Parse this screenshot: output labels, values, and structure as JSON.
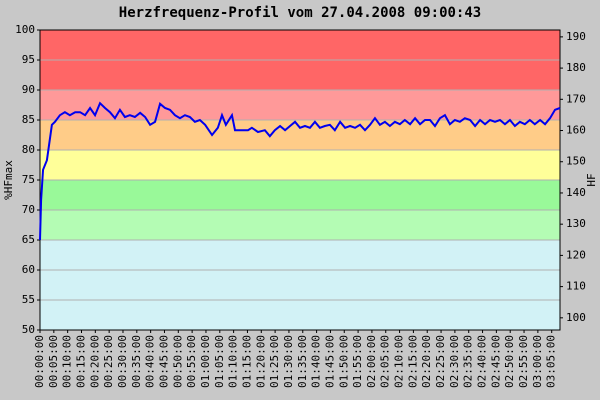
{
  "chart_data": {
    "type": "line",
    "title": "Herzfrequenz-Profil vom 27.04.2008 09:00:43",
    "ylabel": "%HFmax",
    "y2label": "HF",
    "xlim": [
      0,
      188
    ],
    "ylim": [
      50,
      100
    ],
    "y2lim": [
      96.1,
      192.2
    ],
    "yticks": [
      50,
      55,
      60,
      65,
      70,
      75,
      80,
      85,
      90,
      95,
      100
    ],
    "y2ticks": [
      100,
      110,
      120,
      130,
      140,
      150,
      160,
      170,
      180,
      190
    ],
    "xticks": [
      {
        "value": 0,
        "label": "00:00:00"
      },
      {
        "value": 5,
        "label": "00:05:00"
      },
      {
        "value": 10,
        "label": "00:10:00"
      },
      {
        "value": 15,
        "label": "00:15:00"
      },
      {
        "value": 20,
        "label": "00:20:00"
      },
      {
        "value": 25,
        "label": "00:25:00"
      },
      {
        "value": 30,
        "label": "00:30:00"
      },
      {
        "value": 35,
        "label": "00:35:00"
      },
      {
        "value": 40,
        "label": "00:40:00"
      },
      {
        "value": 45,
        "label": "00:45:00"
      },
      {
        "value": 50,
        "label": "00:50:00"
      },
      {
        "value": 55,
        "label": "00:55:00"
      },
      {
        "value": 60,
        "label": "01:00:00"
      },
      {
        "value": 65,
        "label": "01:05:00"
      },
      {
        "value": 70,
        "label": "01:10:00"
      },
      {
        "value": 75,
        "label": "01:15:00"
      },
      {
        "value": 80,
        "label": "01:20:00"
      },
      {
        "value": 85,
        "label": "01:25:00"
      },
      {
        "value": 90,
        "label": "01:30:00"
      },
      {
        "value": 95,
        "label": "01:35:00"
      },
      {
        "value": 100,
        "label": "01:40:00"
      },
      {
        "value": 105,
        "label": "01:45:00"
      },
      {
        "value": 110,
        "label": "01:50:00"
      },
      {
        "value": 115,
        "label": "01:55:00"
      },
      {
        "value": 120,
        "label": "02:00:00"
      },
      {
        "value": 125,
        "label": "02:05:00"
      },
      {
        "value": 130,
        "label": "02:10:00"
      },
      {
        "value": 135,
        "label": "02:15:00"
      },
      {
        "value": 140,
        "label": "02:20:00"
      },
      {
        "value": 145,
        "label": "02:25:00"
      },
      {
        "value": 150,
        "label": "02:30:00"
      },
      {
        "value": 155,
        "label": "02:35:00"
      },
      {
        "value": 160,
        "label": "02:40:00"
      },
      {
        "value": 165,
        "label": "02:45:00"
      },
      {
        "value": 170,
        "label": "02:50:00"
      },
      {
        "value": 175,
        "label": "02:55:00"
      },
      {
        "value": 180,
        "label": "03:00:00"
      },
      {
        "value": 185,
        "label": "03:05:00"
      }
    ],
    "grid": true,
    "zones": [
      {
        "from": 50,
        "to": 65,
        "color": "#d2f2f6"
      },
      {
        "from": 65,
        "to": 70,
        "color": "#b4fcb4"
      },
      {
        "from": 70,
        "to": 75,
        "color": "#99f999"
      },
      {
        "from": 75,
        "to": 80,
        "color": "#ffff99"
      },
      {
        "from": 80,
        "to": 85,
        "color": "#ffcc88"
      },
      {
        "from": 85,
        "to": 90,
        "color": "#ff9999"
      },
      {
        "from": 90,
        "to": 100,
        "color": "#ff6666"
      }
    ],
    "series": [
      {
        "color": "#0000ee",
        "x": [
          0,
          0.4,
          1.1,
          2.5,
          4.3,
          5.4,
          7.2,
          9.0,
          10.8,
          12.7,
          14.5,
          16.3,
          18.1,
          19.9,
          21.7,
          23.5,
          25.3,
          27.1,
          28.9,
          30.7,
          32.5,
          34.3,
          36.2,
          38.0,
          39.8,
          41.6,
          43.4,
          45.2,
          47.0,
          48.8,
          50.6,
          52.4,
          54.2,
          56.0,
          57.8,
          59.7,
          62.2,
          64.3,
          65.8,
          67.2,
          69.4,
          70.5,
          72.3,
          75.2,
          76.6,
          78.8,
          81.3,
          83.1,
          84.9,
          86.8,
          88.6,
          90.4,
          92.2,
          94.0,
          95.8,
          97.6,
          99.4,
          101.2,
          103.0,
          104.8,
          106.6,
          108.5,
          110.3,
          112.1,
          113.9,
          115.7,
          117.5,
          119.3,
          121.1,
          122.9,
          124.7,
          126.5,
          128.3,
          130.1,
          131.9,
          133.8,
          135.6,
          137.4,
          139.2,
          141.0,
          142.8,
          144.6,
          146.4,
          148.2,
          150.0,
          151.8,
          153.6,
          155.5,
          157.3,
          159.1,
          160.9,
          162.7,
          164.5,
          166.3,
          168.1,
          169.9,
          171.7,
          173.5,
          175.3,
          177.1,
          178.9,
          180.8,
          182.6,
          184.4,
          186.2,
          188.0
        ],
        "values": [
          65,
          71.7,
          76.7,
          78.3,
          84.2,
          84.7,
          85.8,
          86.3,
          85.8,
          86.3,
          86.3,
          85.8,
          87,
          85.8,
          87.8,
          87,
          86.3,
          85.3,
          86.7,
          85.5,
          85.8,
          85.5,
          86.2,
          85.5,
          84.2,
          84.7,
          87.7,
          87,
          86.7,
          85.8,
          85.3,
          85.8,
          85.5,
          84.7,
          85,
          84.2,
          82.5,
          83.7,
          85.8,
          84.2,
          85.8,
          83.3,
          83.3,
          83.3,
          83.7,
          83,
          83.3,
          82.3,
          83.3,
          84,
          83.3,
          84,
          84.7,
          83.7,
          84,
          83.7,
          84.7,
          83.7,
          84,
          84.2,
          83.3,
          84.7,
          83.7,
          84,
          83.7,
          84.2,
          83.3,
          84.2,
          85.3,
          84.2,
          84.7,
          84,
          84.7,
          84.3,
          85,
          84.3,
          85.3,
          84.3,
          85,
          85,
          84,
          85.3,
          85.8,
          84.3,
          85,
          84.7,
          85.3,
          85,
          84,
          85,
          84.3,
          85,
          84.7,
          85,
          84.3,
          85,
          84,
          84.7,
          84.3,
          85,
          84.3,
          85,
          84.3,
          85.3,
          86.7,
          87
        ]
      }
    ]
  }
}
